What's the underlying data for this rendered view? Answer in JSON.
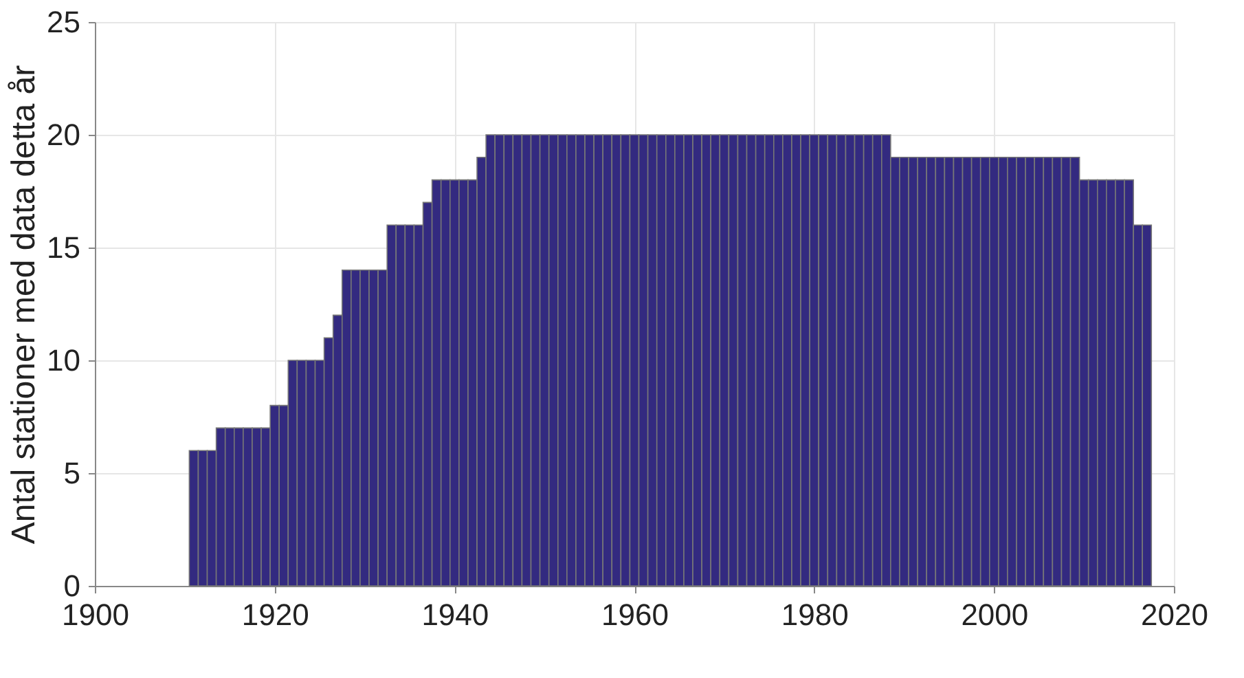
{
  "chart_data": {
    "type": "bar",
    "ylabel": "Antal stationer med data detta år",
    "x": [
      1911,
      1912,
      1913,
      1914,
      1915,
      1916,
      1917,
      1918,
      1919,
      1920,
      1921,
      1922,
      1923,
      1924,
      1925,
      1926,
      1927,
      1928,
      1929,
      1930,
      1931,
      1932,
      1933,
      1934,
      1935,
      1936,
      1937,
      1938,
      1939,
      1940,
      1941,
      1942,
      1943,
      1944,
      1945,
      1946,
      1947,
      1948,
      1949,
      1950,
      1951,
      1952,
      1953,
      1954,
      1955,
      1956,
      1957,
      1958,
      1959,
      1960,
      1961,
      1962,
      1963,
      1964,
      1965,
      1966,
      1967,
      1968,
      1969,
      1970,
      1971,
      1972,
      1973,
      1974,
      1975,
      1976,
      1977,
      1978,
      1979,
      1980,
      1981,
      1982,
      1983,
      1984,
      1985,
      1986,
      1987,
      1988,
      1989,
      1990,
      1991,
      1992,
      1993,
      1994,
      1995,
      1996,
      1997,
      1998,
      1999,
      2000,
      2001,
      2002,
      2003,
      2004,
      2005,
      2006,
      2007,
      2008,
      2009,
      2010,
      2011,
      2012,
      2013,
      2014,
      2015,
      2016,
      2017
    ],
    "values": [
      6,
      6,
      6,
      7,
      7,
      7,
      7,
      7,
      7,
      8,
      8,
      10,
      10,
      10,
      10,
      11,
      12,
      14,
      14,
      14,
      14,
      14,
      16,
      16,
      16,
      16,
      17,
      18,
      18,
      18,
      18,
      18,
      19,
      20,
      20,
      20,
      20,
      20,
      20,
      20,
      20,
      20,
      20,
      20,
      20,
      20,
      20,
      20,
      20,
      20,
      20,
      20,
      20,
      20,
      20,
      20,
      20,
      20,
      20,
      20,
      20,
      20,
      20,
      20,
      20,
      20,
      20,
      20,
      20,
      20,
      20,
      20,
      20,
      20,
      20,
      20,
      20,
      20,
      19,
      19,
      19,
      19,
      19,
      19,
      19,
      19,
      19,
      19,
      19,
      19,
      19,
      19,
      19,
      19,
      19,
      19,
      19,
      19,
      19,
      18,
      18,
      18,
      18,
      18,
      18,
      16,
      16
    ],
    "color": "#332a80",
    "xlim": [
      1900,
      2020
    ],
    "xticks": [
      1900,
      1920,
      1940,
      1960,
      1980,
      2000,
      2020
    ],
    "ylim": [
      0,
      25
    ],
    "yticks": [
      0,
      5,
      10,
      15,
      20,
      25
    ],
    "grid": true
  }
}
